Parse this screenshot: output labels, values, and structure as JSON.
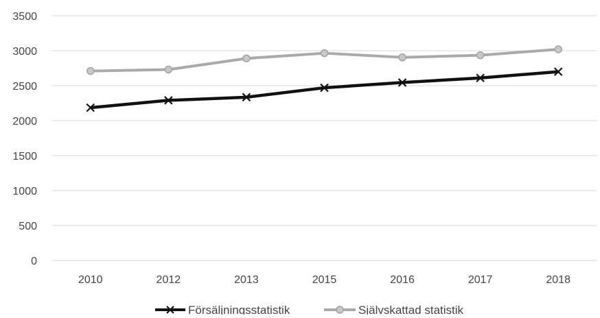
{
  "chart_data": {
    "type": "line",
    "categories": [
      "2010",
      "2012",
      "2013",
      "2015",
      "2016",
      "2017",
      "2018"
    ],
    "ylim": [
      0,
      3500
    ],
    "y_ticks": [
      0,
      500,
      1000,
      1500,
      2000,
      2500,
      3000,
      3500
    ],
    "grid": "horizontal",
    "legend_position": "bottom",
    "series": [
      {
        "name": "Försäljningsstatistik",
        "color": "#111111",
        "marker": "x-cross",
        "values": [
          2185,
          2290,
          2335,
          2470,
          2545,
          2610,
          2700
        ]
      },
      {
        "name": "Självskattad statistik",
        "color": "#aaaaaa",
        "marker": "circle",
        "values": [
          2710,
          2730,
          2890,
          2965,
          2905,
          2935,
          3020
        ]
      }
    ]
  }
}
